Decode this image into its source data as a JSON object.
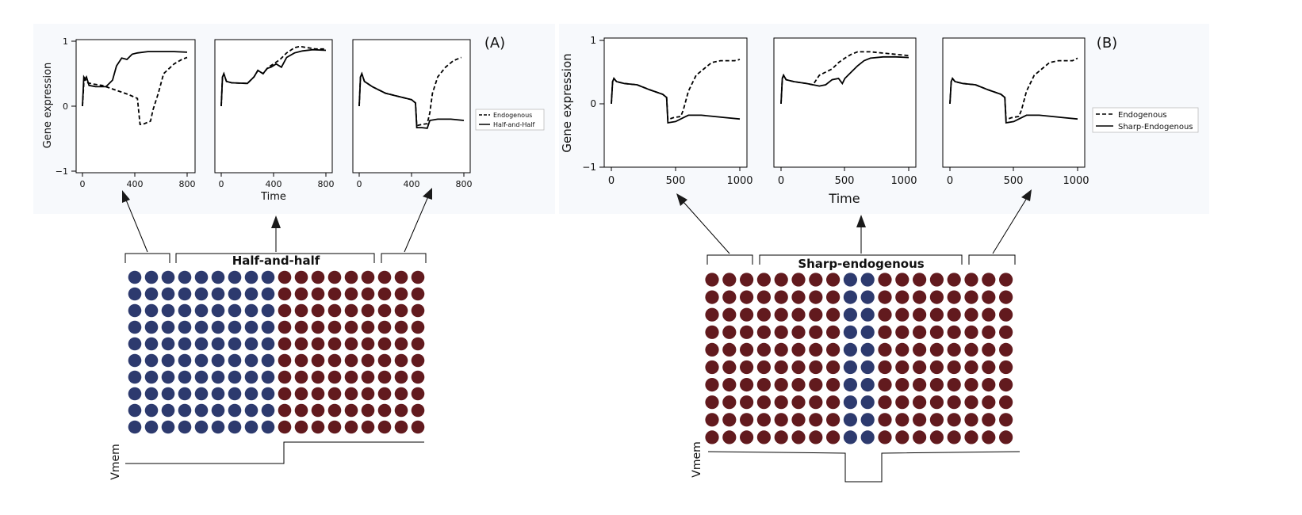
{
  "figure": {
    "panel_A_label": "(A)",
    "panel_B_label": "(B)",
    "colors": {
      "blue_cell": "#2d3a6e",
      "red_cell": "#621a1e",
      "background": "#f7f9fc",
      "line": "#000000"
    }
  },
  "panel_A": {
    "ylabel": "Gene expression",
    "xlabel": "Time",
    "yticks": [
      "1",
      "0",
      "−1"
    ],
    "xticks": [
      "0",
      "400",
      "800"
    ],
    "legend": [
      "Endogenous",
      "Half-and-Half"
    ],
    "bracket_label": "Half-and-half",
    "vmem_label": "Vmem"
  },
  "panel_B": {
    "ylabel": "Gene expression",
    "xlabel": "Time",
    "yticks": [
      "1",
      "0",
      "−1"
    ],
    "xticks": [
      "0",
      "500",
      "1000"
    ],
    "legend": [
      "Endogenous",
      "Sharp-Endogenous"
    ],
    "bracket_label": "Sharp-endogenous",
    "vmem_label": "Vmem"
  },
  "chart_data": [
    {
      "type": "line",
      "panel": "A-left",
      "xlim": [
        0,
        800
      ],
      "ylim": [
        -1,
        1
      ],
      "series": [
        {
          "name": "Endogenous",
          "style": "dashed",
          "x": [
            0,
            10,
            20,
            40,
            80,
            150,
            250,
            350,
            420,
            440,
            460,
            520,
            540,
            580,
            620,
            700,
            760,
            800
          ],
          "y": [
            0.0,
            0.35,
            0.42,
            0.36,
            0.34,
            0.32,
            0.25,
            0.18,
            0.12,
            -0.28,
            -0.28,
            -0.23,
            -0.05,
            0.2,
            0.5,
            0.65,
            0.72,
            0.75
          ]
        },
        {
          "name": "Half-and-Half",
          "style": "solid",
          "x": [
            0,
            10,
            20,
            30,
            50,
            100,
            180,
            230,
            260,
            300,
            340,
            380,
            420,
            500,
            600,
            700,
            800
          ],
          "y": [
            0.0,
            0.45,
            0.42,
            0.45,
            0.32,
            0.3,
            0.3,
            0.4,
            0.62,
            0.74,
            0.72,
            0.8,
            0.82,
            0.84,
            0.84,
            0.84,
            0.83
          ]
        }
      ]
    },
    {
      "type": "line",
      "panel": "A-middle",
      "xlim": [
        0,
        800
      ],
      "ylim": [
        -1,
        1
      ],
      "series": [
        {
          "name": "Endogenous",
          "style": "dashed",
          "x": [
            0,
            10,
            20,
            40,
            80,
            200,
            250,
            280,
            320,
            360,
            400,
            450,
            500,
            560,
            600,
            660,
            720,
            800
          ],
          "y": [
            0.0,
            0.45,
            0.5,
            0.38,
            0.36,
            0.35,
            0.45,
            0.55,
            0.5,
            0.6,
            0.65,
            0.72,
            0.82,
            0.9,
            0.92,
            0.9,
            0.88,
            0.88
          ]
        },
        {
          "name": "Half-and-Half",
          "style": "solid",
          "x": [
            0,
            10,
            20,
            40,
            80,
            200,
            250,
            280,
            320,
            350,
            380,
            420,
            460,
            500,
            560,
            620,
            700,
            800
          ],
          "y": [
            0.0,
            0.45,
            0.5,
            0.38,
            0.36,
            0.35,
            0.45,
            0.55,
            0.5,
            0.58,
            0.6,
            0.65,
            0.6,
            0.75,
            0.82,
            0.85,
            0.87,
            0.86
          ]
        }
      ]
    },
    {
      "type": "line",
      "panel": "A-right",
      "xlim": [
        0,
        800
      ],
      "ylim": [
        -1,
        1
      ],
      "series": [
        {
          "name": "Endogenous",
          "style": "dashed",
          "x": [
            0,
            10,
            20,
            40,
            100,
            200,
            300,
            400,
            430,
            440,
            480,
            520,
            540,
            560,
            600,
            660,
            720,
            780
          ],
          "y": [
            0.0,
            0.45,
            0.5,
            0.38,
            0.3,
            0.2,
            0.15,
            0.1,
            0.05,
            -0.3,
            -0.28,
            -0.27,
            -0.1,
            0.2,
            0.45,
            0.6,
            0.7,
            0.75
          ]
        },
        {
          "name": "Half-and-Half",
          "style": "solid",
          "x": [
            0,
            10,
            20,
            40,
            100,
            200,
            300,
            400,
            430,
            440,
            480,
            520,
            540,
            600,
            700,
            800
          ],
          "y": [
            0.0,
            0.45,
            0.5,
            0.38,
            0.3,
            0.2,
            0.15,
            0.1,
            0.05,
            -0.33,
            -0.33,
            -0.34,
            -0.22,
            -0.2,
            -0.2,
            -0.22
          ]
        }
      ]
    },
    {
      "type": "line",
      "panel": "B-left",
      "xlim": [
        0,
        1000
      ],
      "ylim": [
        -1,
        1
      ],
      "series": [
        {
          "name": "Endogenous",
          "style": "dashed",
          "x": [
            0,
            10,
            20,
            40,
            100,
            200,
            300,
            400,
            430,
            440,
            480,
            540,
            560,
            600,
            660,
            720,
            780,
            850,
            900,
            960,
            1000
          ],
          "y": [
            0.0,
            0.35,
            0.4,
            0.35,
            0.32,
            0.3,
            0.22,
            0.15,
            0.1,
            -0.25,
            -0.22,
            -0.2,
            -0.1,
            0.2,
            0.45,
            0.55,
            0.65,
            0.68,
            0.68,
            0.68,
            0.7
          ]
        },
        {
          "name": "Sharp-Endogenous",
          "style": "solid",
          "x": [
            0,
            10,
            20,
            40,
            100,
            200,
            300,
            400,
            430,
            440,
            500,
            560,
            600,
            700,
            800,
            900,
            1000
          ],
          "y": [
            0.0,
            0.35,
            0.4,
            0.35,
            0.32,
            0.3,
            0.22,
            0.15,
            0.1,
            -0.3,
            -0.28,
            -0.22,
            -0.18,
            -0.18,
            -0.2,
            -0.22,
            -0.24
          ]
        }
      ]
    },
    {
      "type": "line",
      "panel": "B-middle",
      "xlim": [
        0,
        1000
      ],
      "ylim": [
        -1,
        1
      ],
      "series": [
        {
          "name": "Endogenous",
          "style": "dashed",
          "x": [
            0,
            10,
            20,
            40,
            100,
            200,
            250,
            300,
            350,
            400,
            450,
            500,
            550,
            600,
            700,
            800,
            900,
            1000
          ],
          "y": [
            0.0,
            0.4,
            0.45,
            0.38,
            0.35,
            0.32,
            0.3,
            0.45,
            0.5,
            0.55,
            0.65,
            0.72,
            0.78,
            0.82,
            0.82,
            0.8,
            0.78,
            0.76
          ]
        },
        {
          "name": "Sharp-Endogenous",
          "style": "solid",
          "x": [
            0,
            10,
            20,
            40,
            100,
            200,
            300,
            350,
            400,
            450,
            480,
            500,
            550,
            600,
            650,
            700,
            800,
            900,
            1000
          ],
          "y": [
            0.0,
            0.4,
            0.45,
            0.38,
            0.35,
            0.32,
            0.28,
            0.3,
            0.38,
            0.4,
            0.32,
            0.4,
            0.5,
            0.6,
            0.68,
            0.72,
            0.74,
            0.74,
            0.73
          ]
        }
      ]
    },
    {
      "type": "line",
      "panel": "B-right",
      "xlim": [
        0,
        1000
      ],
      "ylim": [
        -1,
        1
      ],
      "series": [
        {
          "name": "Endogenous",
          "style": "dashed",
          "x": [
            0,
            10,
            20,
            40,
            100,
            200,
            300,
            400,
            430,
            440,
            480,
            540,
            560,
            600,
            660,
            720,
            780,
            850,
            900,
            960,
            1000
          ],
          "y": [
            0.0,
            0.35,
            0.4,
            0.35,
            0.32,
            0.3,
            0.22,
            0.15,
            0.1,
            -0.25,
            -0.22,
            -0.2,
            -0.1,
            0.2,
            0.45,
            0.55,
            0.65,
            0.68,
            0.68,
            0.68,
            0.72
          ]
        },
        {
          "name": "Sharp-Endogenous",
          "style": "solid",
          "x": [
            0,
            10,
            20,
            40,
            100,
            200,
            300,
            400,
            430,
            440,
            500,
            560,
            600,
            700,
            800,
            900,
            1000
          ],
          "y": [
            0.0,
            0.35,
            0.4,
            0.35,
            0.32,
            0.3,
            0.22,
            0.15,
            0.1,
            -0.3,
            -0.28,
            -0.22,
            -0.18,
            -0.18,
            -0.2,
            -0.22,
            -0.24
          ]
        }
      ]
    }
  ],
  "grids": {
    "A": {
      "rows": 10,
      "cols": 18,
      "blue_cols": [
        0,
        1,
        2,
        3,
        4,
        5,
        6,
        7,
        8
      ]
    },
    "B": {
      "rows": 10,
      "cols": 18,
      "blue_cols": [
        8,
        9
      ]
    }
  }
}
